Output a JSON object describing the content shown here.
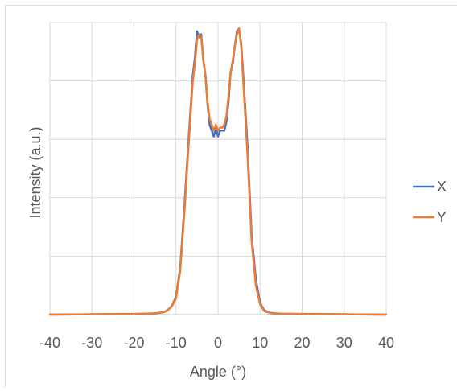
{
  "chart_data": {
    "type": "line",
    "title": "",
    "xlabel": "Angle (°)",
    "ylabel": "Intensity (a.u.)",
    "xlim": [
      -40,
      40
    ],
    "xticks": [
      -40,
      -30,
      -20,
      -10,
      0,
      10,
      20,
      30,
      40
    ],
    "ylim": [
      0,
      1.0
    ],
    "y_gridlines": [
      0,
      0.2,
      0.4,
      0.6,
      0.8,
      1.0
    ],
    "y_tick_labels_shown": false,
    "grid": true,
    "legend_position": "right",
    "series": [
      {
        "name": "X",
        "color": "#4472C4",
        "x": [
          -40,
          -20,
          -15,
          -13,
          -12,
          -11,
          -10,
          -9,
          -8,
          -7,
          -6,
          -5.5,
          -5,
          -4.5,
          -4,
          -3.5,
          -3,
          -2.5,
          -2,
          -1.5,
          -1,
          -0.5,
          0,
          0.5,
          1,
          1.5,
          2,
          2.5,
          3,
          3.5,
          4,
          4.5,
          5,
          5.5,
          6,
          7,
          8,
          9,
          10,
          11,
          12,
          13,
          15,
          20,
          40
        ],
        "y": [
          0.0,
          0.002,
          0.004,
          0.008,
          0.015,
          0.03,
          0.06,
          0.16,
          0.37,
          0.6,
          0.82,
          0.88,
          0.97,
          0.95,
          0.96,
          0.87,
          0.82,
          0.72,
          0.65,
          0.63,
          0.61,
          0.64,
          0.61,
          0.63,
          0.63,
          0.63,
          0.66,
          0.73,
          0.83,
          0.86,
          0.92,
          0.97,
          0.98,
          0.93,
          0.82,
          0.58,
          0.27,
          0.12,
          0.04,
          0.015,
          0.008,
          0.005,
          0.003,
          0.002,
          0.0
        ]
      },
      {
        "name": "Y",
        "color": "#ED7D31",
        "x": [
          -40,
          -20,
          -15,
          -13,
          -12,
          -11,
          -10,
          -9,
          -8,
          -7,
          -6,
          -5.5,
          -5,
          -4.5,
          -4,
          -3.5,
          -3,
          -2.5,
          -2,
          -1.5,
          -1,
          -0.5,
          0,
          0.5,
          1,
          1.5,
          2,
          2.5,
          3,
          3.5,
          4,
          4.5,
          5,
          5.5,
          6,
          7,
          8,
          9,
          10,
          11,
          12,
          13,
          15,
          20,
          40
        ],
        "y": [
          0.0,
          0.002,
          0.004,
          0.008,
          0.014,
          0.028,
          0.055,
          0.15,
          0.35,
          0.58,
          0.8,
          0.86,
          0.94,
          0.96,
          0.95,
          0.87,
          0.82,
          0.73,
          0.67,
          0.65,
          0.63,
          0.65,
          0.63,
          0.64,
          0.64,
          0.65,
          0.68,
          0.75,
          0.83,
          0.87,
          0.92,
          0.96,
          0.98,
          0.92,
          0.8,
          0.55,
          0.25,
          0.1,
          0.035,
          0.012,
          0.007,
          0.004,
          0.003,
          0.002,
          0.0
        ]
      }
    ]
  }
}
